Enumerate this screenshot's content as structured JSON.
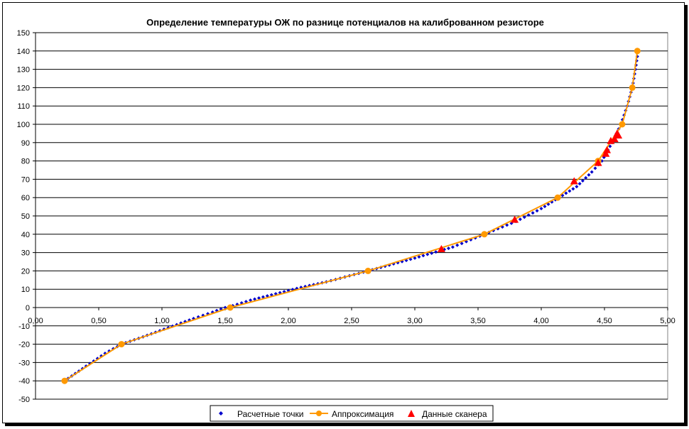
{
  "chart_data": {
    "type": "scatter",
    "title": "Определение температуры ОЖ по разнице потенциалов на калиброванном резисторе",
    "xlabel": "",
    "ylabel": "",
    "xlim": [
      0,
      5
    ],
    "ylim": [
      -50,
      150
    ],
    "x_ticks": [
      "0,00",
      "0,50",
      "1,00",
      "1,50",
      "2,00",
      "2,50",
      "3,00",
      "3,50",
      "4,00",
      "4,50",
      "5,00"
    ],
    "y_ticks": [
      "-50",
      "-40",
      "-30",
      "-20",
      "-10",
      "0",
      "10",
      "20",
      "30",
      "40",
      "50",
      "60",
      "70",
      "80",
      "90",
      "100",
      "110",
      "120",
      "130",
      "140",
      "150"
    ],
    "grid": "horizontal",
    "legend_position": "bottom",
    "series": [
      {
        "name": "Расчетные точки",
        "marker": "diamond",
        "color": "#0000CC",
        "anchors_x": [
          0.23,
          0.4,
          0.55,
          0.68,
          0.85,
          1.05,
          1.25,
          1.4,
          1.5,
          1.56,
          1.7,
          1.9,
          2.1,
          2.3,
          2.63,
          3.0,
          3.3,
          3.55,
          3.8,
          4.0,
          4.14,
          4.28,
          4.4,
          4.48,
          4.56,
          4.63,
          4.68,
          4.72,
          4.745,
          4.76,
          4.765
        ],
        "anchors_y": [
          -40,
          -32,
          -25,
          -20,
          -16,
          -11,
          -6,
          -2.5,
          0,
          1,
          4,
          7.5,
          11,
          14,
          20,
          27,
          33,
          40,
          47,
          54,
          60,
          66,
          74,
          80,
          90,
          100,
          110,
          120,
          130,
          137,
          140
        ]
      },
      {
        "name": "Аппроксимация",
        "marker": "circle",
        "color": "#FF9900",
        "x": [
          0.23,
          0.68,
          1.54,
          2.63,
          3.55,
          4.13,
          4.45,
          4.64,
          4.72,
          4.76
        ],
        "y": [
          -40,
          -20,
          0,
          20,
          40,
          60,
          80,
          100,
          120,
          140
        ]
      },
      {
        "name": "Данные сканера",
        "marker": "triangle",
        "color": "#FF0000",
        "x": [
          3.21,
          3.79,
          4.26,
          4.45,
          4.51,
          4.52,
          4.55,
          4.58,
          4.61,
          4.6
        ],
        "y": [
          32,
          48,
          69,
          79,
          84,
          86,
          91,
          92,
          94,
          95
        ]
      }
    ]
  }
}
